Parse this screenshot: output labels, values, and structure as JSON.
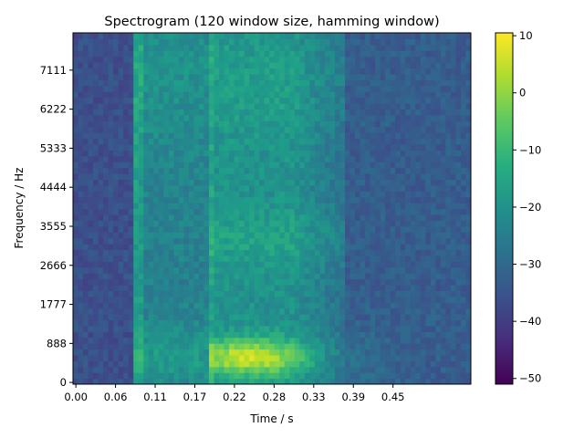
{
  "chart_data": {
    "type": "heatmap",
    "title": "Spectrogram (120 window size, hamming window)",
    "xlabel": "Time / s",
    "ylabel": "Frequency / Hz",
    "x_ticks": [
      "0.00",
      "0.06",
      "0.11",
      "0.17",
      "0.22",
      "0.28",
      "0.33",
      "0.39",
      "0.45"
    ],
    "x_tick_values": [
      0.0,
      0.055,
      0.11,
      0.165,
      0.22,
      0.275,
      0.33,
      0.385,
      0.44
    ],
    "xlim": [
      -0.004,
      0.548
    ],
    "y_ticks": [
      "0",
      "888",
      "1777",
      "2666",
      "3555",
      "4444",
      "5333",
      "6222",
      "7111"
    ],
    "y_tick_values": [
      0,
      888,
      1777,
      2666,
      3555,
      4444,
      5333,
      6222,
      7111
    ],
    "ylim": [
      -40,
      7960
    ],
    "colormap": "viridis",
    "colorbar": {
      "ticks": [
        "−50",
        "−40",
        "−30",
        "−20",
        "−10",
        "0",
        "10"
      ],
      "tick_values": [
        -50,
        -40,
        -30,
        -20,
        -10,
        0,
        10
      ],
      "range": [
        -51,
        10.5
      ]
    },
    "grid": {
      "time_bins": 79,
      "freq_bins": 60,
      "time_range": [
        -0.004,
        0.548
      ],
      "freq_range": [
        -40,
        7960
      ]
    },
    "regions": [
      {
        "description": "background noise",
        "time": [
          -0.004,
          0.08
        ],
        "level_db": -35
      },
      {
        "description": "fricative burst",
        "time": [
          0.08,
          0.185
        ],
        "level_db": -20
      },
      {
        "description": "voiced vowel",
        "time": [
          0.185,
          0.37
        ],
        "level_db": -15
      },
      {
        "description": "low-frequency formant peak",
        "time": [
          0.19,
          0.33
        ],
        "freq": [
          150,
          900
        ],
        "level_db": 8
      },
      {
        "description": "decay",
        "time": [
          0.37,
          0.548
        ],
        "level_db": -32
      }
    ],
    "seed": 7
  }
}
